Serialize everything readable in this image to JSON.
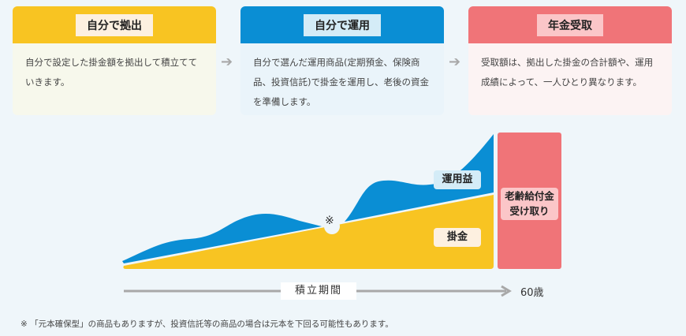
{
  "steps": [
    {
      "title": "自分で拠出",
      "text": "自分で設定した掛金額を拠出して積立てていきます。",
      "color": "#f8c422",
      "tag_bg": "#fdf0e0",
      "body_bg": "#f7f8ec"
    },
    {
      "title": "自分で運用",
      "text": "自分で選んだ運用商品(定期預金、保険商品、投資信託)で掛金を運用し、老後の資金を準備します。",
      "color": "#0a8ed4",
      "tag_bg": "#d4ecf7",
      "body_bg": "#eaf4fa"
    },
    {
      "title": "年金受取",
      "text": "受取額は、拠出した掛金の合計額や、運用成績によって、一人ひとり異なります。",
      "color": "#f07478",
      "tag_bg": "#fbc6c8",
      "body_bg": "#fcf3f3"
    }
  ],
  "arrow_icon": "arrow-right",
  "diagram": {
    "gain_label": "運用益",
    "contribution_label": "掛金",
    "note_mark": "※",
    "payout_label": "老齢給付金受け取り",
    "payout_line1": "老齢給付金",
    "payout_line2": "受け取り",
    "period_label": "積立期間",
    "age_label": "60歳"
  },
  "footnote": "※ 「元本確保型」の商品もありますが、投資信託等の商品の場合は元本を下回る可能性もあります。"
}
